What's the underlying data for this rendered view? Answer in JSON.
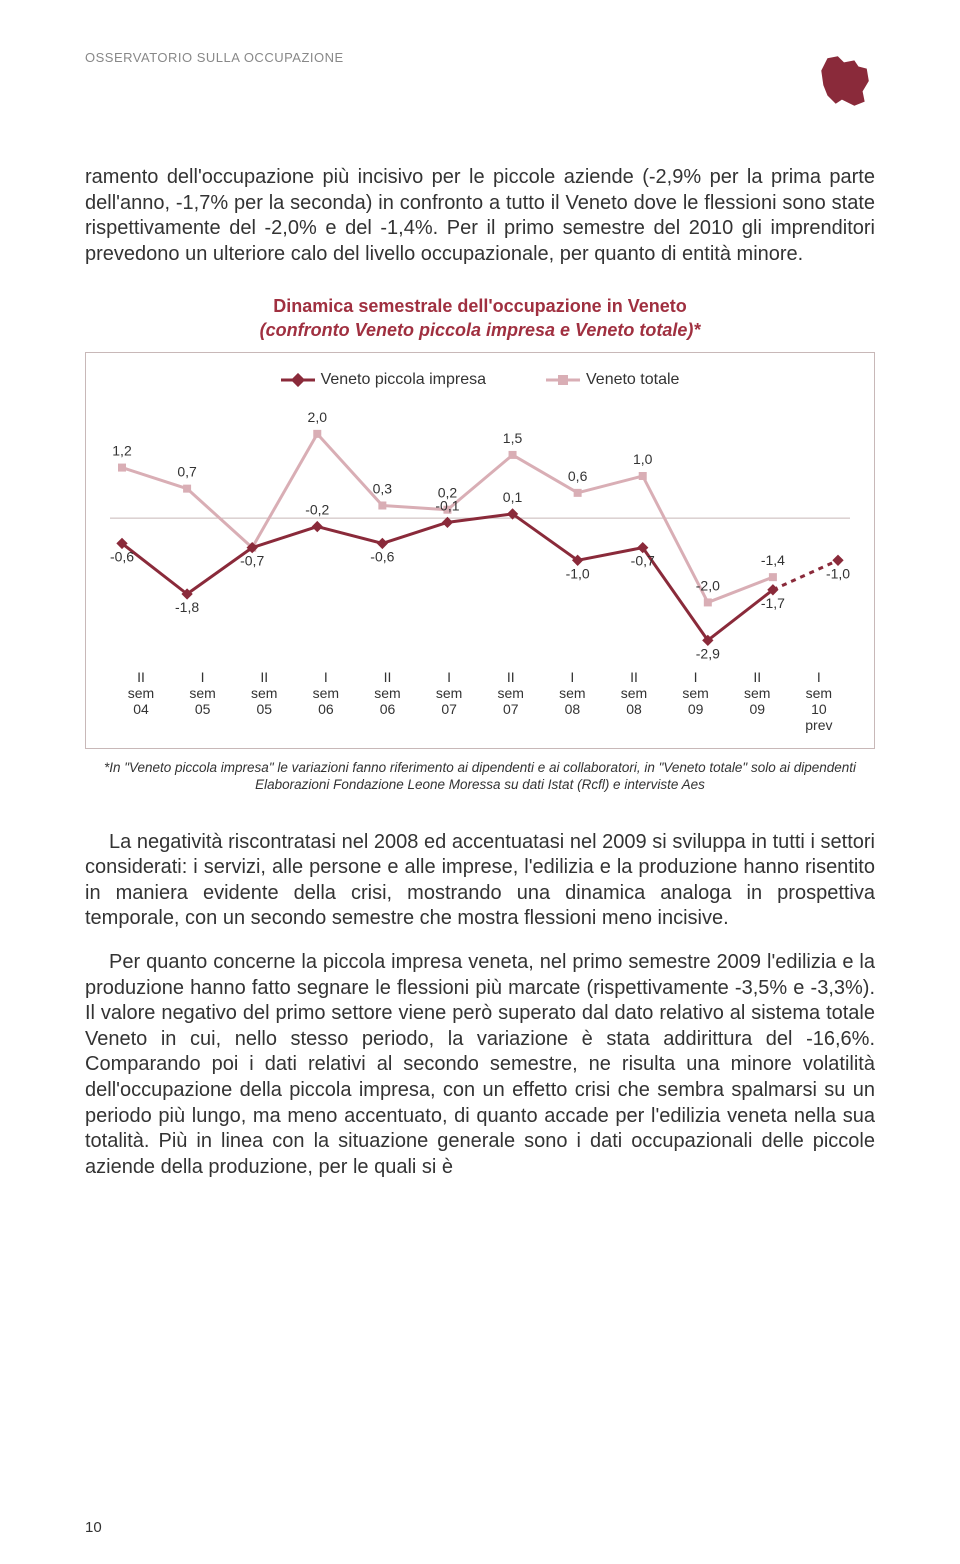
{
  "header": {
    "section_label": "OSSERVATORIO SULLA OCCUPAZIONE"
  },
  "paragraphs": {
    "p1": "ramento dell'occupazione più incisivo per le piccole aziende (-2,9% per la prima parte dell'anno, -1,7% per la seconda) in confronto a tutto il Veneto dove le flessioni sono state rispettivamente del -2,0% e del -1,4%. Per il primo semestre del 2010 gli imprenditori prevedono un ulteriore calo del livello occupazionale, per quanto di entità minore.",
    "p2": "La negatività riscontratasi nel 2008 ed accentuatasi nel 2009 si sviluppa in tutti i settori considerati: i servizi, alle persone e alle imprese, l'edilizia e la produzione hanno risentito in maniera evidente della crisi, mostrando una dinamica analoga in prospettiva temporale, con un secondo semestre che mostra flessioni meno incisive.",
    "p3": "Per quanto concerne la piccola impresa veneta, nel primo semestre 2009 l'edilizia e la produzione hanno fatto segnare le flessioni più marcate (rispettivamente -3,5% e -3,3%). Il valore negativo del primo settore viene però superato dal dato relativo al sistema totale Veneto in cui, nello stesso periodo, la variazione è stata addirittura del -16,6%. Comparando poi i dati relativi al secondo semestre, ne risulta una minore volatilità dell'occupazione della piccola impresa, con un effetto crisi che sembra spalmarsi su un periodo più lungo, ma meno accentuato, di quanto accade per l'edilizia veneta nella sua totalità. Più in linea con la situazione generale sono i dati occupazionali delle piccole aziende della produzione, per le quali si è"
  },
  "chart": {
    "title_line1": "Dinamica semestrale dell'occupazione in Veneto",
    "title_line2": "(confronto Veneto piccola impresa e Veneto totale)*",
    "legend_a": "Veneto piccola impresa",
    "legend_b": "Veneto totale",
    "categories": [
      "II sem 04",
      "I sem 05",
      "II sem 05",
      "I sem 06",
      "II sem 06",
      "I sem 07",
      "II sem 07",
      "I sem 08",
      "II sem 08",
      "I sem 09",
      "II sem 09",
      "I sem 10 prev"
    ],
    "series_a": {
      "values": [
        -0.6,
        -1.8,
        -0.7,
        -0.2,
        -0.6,
        -0.1,
        0.1,
        -1.0,
        -0.7,
        -2.9,
        -1.7,
        -1.0
      ],
      "labels": [
        "-0,6",
        "-1,8",
        "-0,7",
        "-0,2",
        "-0,6",
        "-0,1",
        "0,1",
        "-1,0",
        "-0,7",
        "-2,9",
        "-1,7",
        "-1,0"
      ],
      "color": "#8a2a3a",
      "marker": "diamond",
      "dash_last": true
    },
    "series_b": {
      "values": [
        1.2,
        0.7,
        -0.7,
        2.0,
        0.3,
        0.2,
        1.5,
        0.6,
        1.0,
        -2.0,
        -1.4,
        null
      ],
      "labels": [
        "1,2",
        "0,7",
        "",
        "2,0",
        "0,3",
        "0,2",
        "1,5",
        "0,6",
        "1,0",
        "-2,0",
        "-1,4",
        ""
      ],
      "color": "#d9aeb5",
      "marker": "square",
      "dash_last": false
    },
    "ylim": [
      -3.2,
      2.4
    ],
    "axis_color": "#c8b8b8",
    "text_color": "#333333",
    "label_fontsize": 14,
    "line_width": 3,
    "marker_size": 8
  },
  "footnote": {
    "line1": "*In \"Veneto piccola impresa\" le variazioni fanno riferimento ai dipendenti e ai collaboratori, in \"Veneto totale\" solo ai dipendenti",
    "line2": "Elaborazioni Fondazione Leone Moressa su dati Istat (Rcfl) e interviste Aes"
  },
  "page_number": "10"
}
